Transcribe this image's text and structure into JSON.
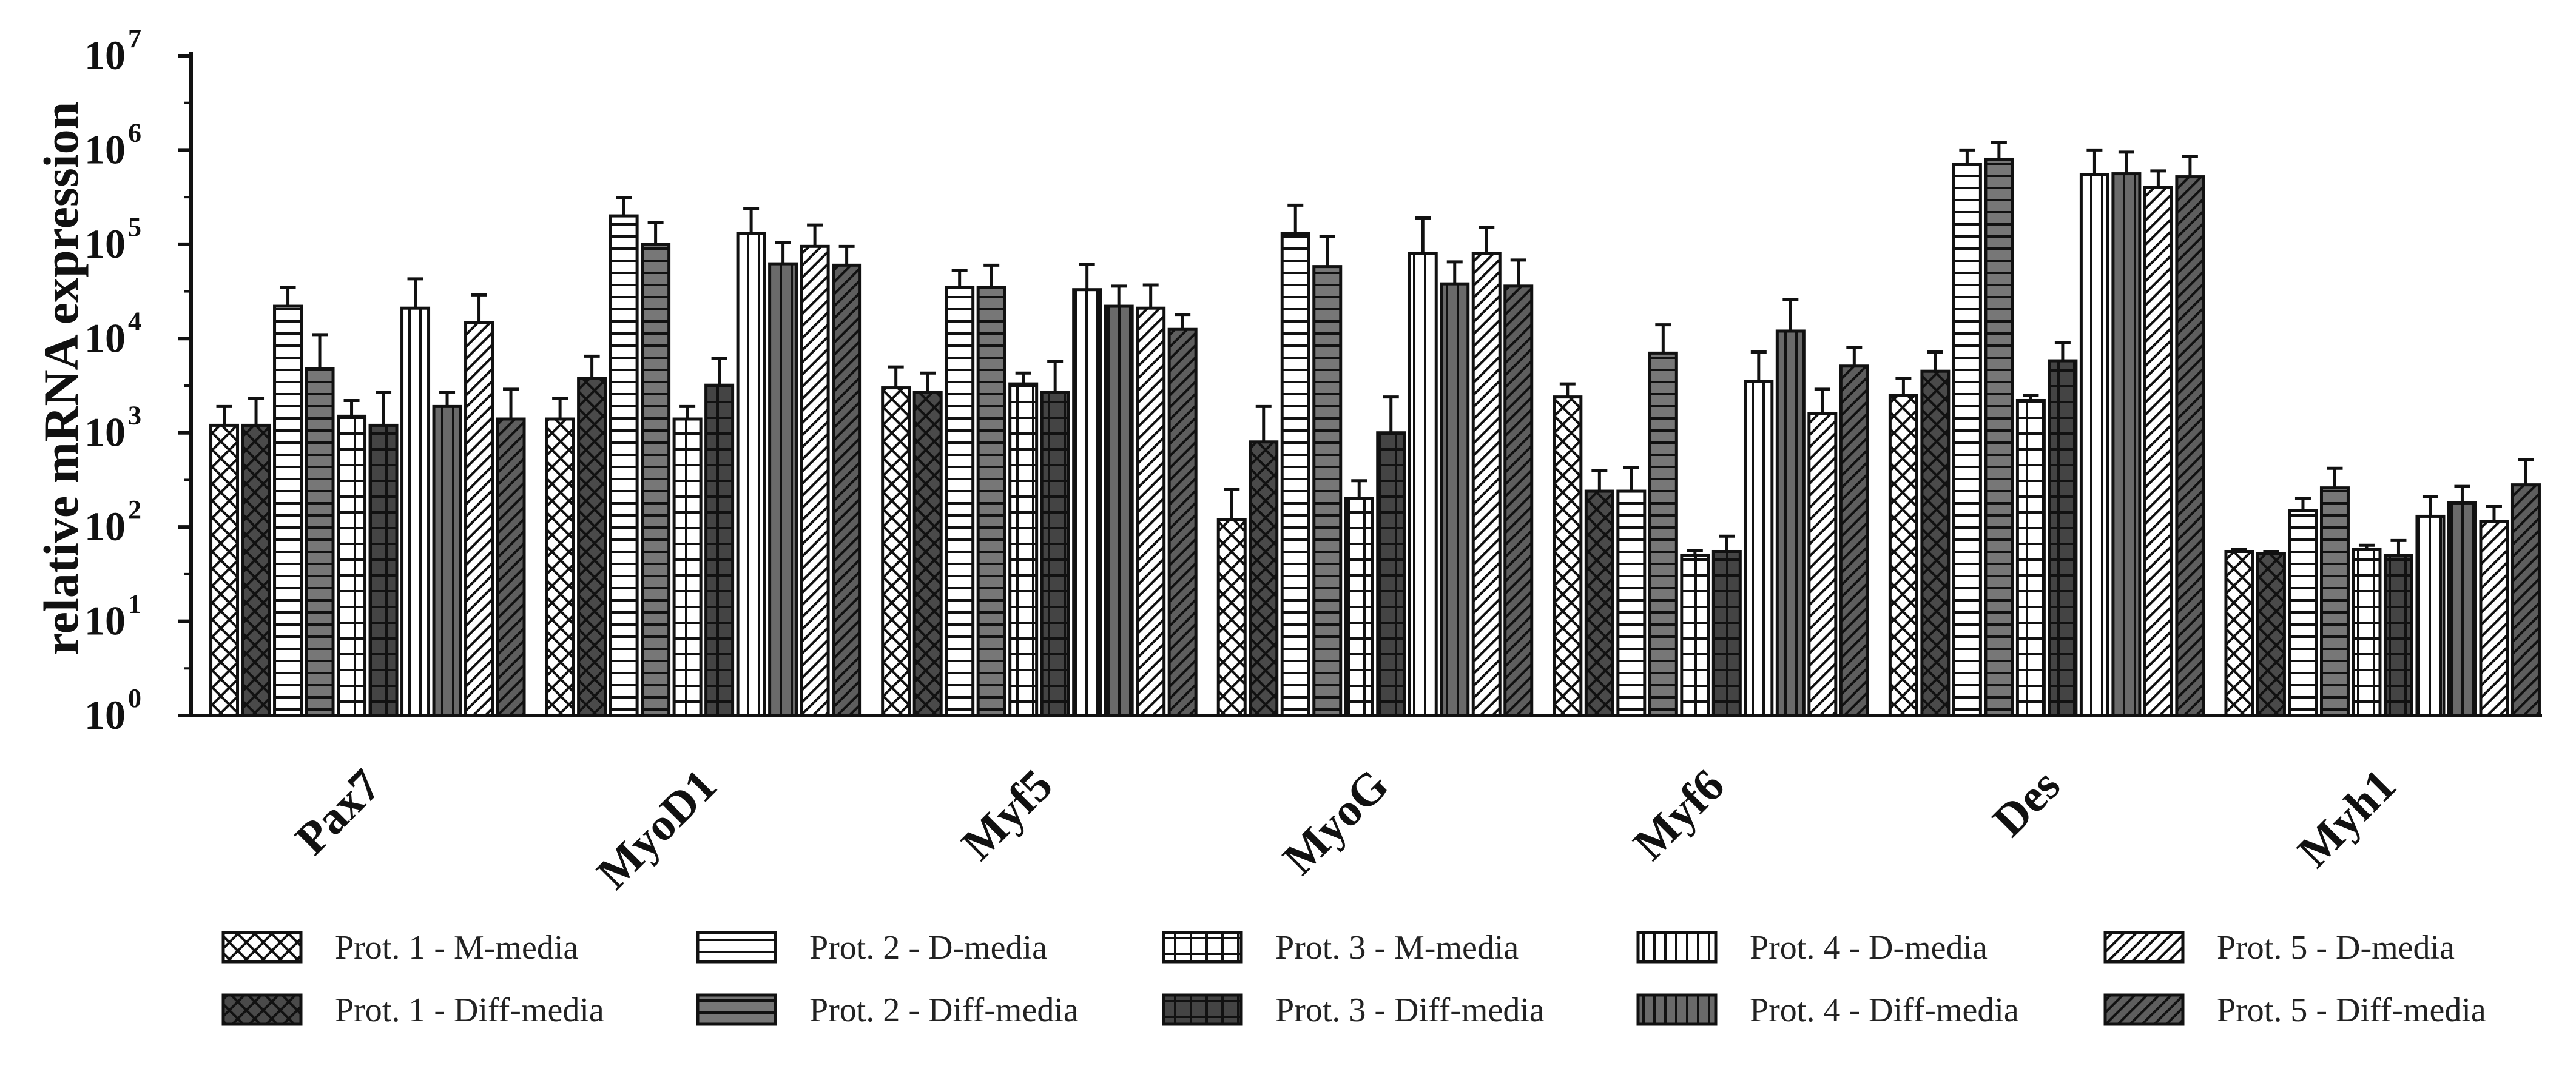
{
  "chart_data": {
    "type": "bar",
    "title": "",
    "xlabel": "",
    "ylabel": "relative mRNA expression",
    "yscale": "log10",
    "ylim": [
      1,
      10000000
    ],
    "yticks": [
      {
        "value": 1,
        "base": "10",
        "exp": "0"
      },
      {
        "value": 10,
        "base": "10",
        "exp": "1"
      },
      {
        "value": 100,
        "base": "10",
        "exp": "2"
      },
      {
        "value": 1000,
        "base": "10",
        "exp": "3"
      },
      {
        "value": 10000,
        "base": "10",
        "exp": "4"
      },
      {
        "value": 100000,
        "base": "10",
        "exp": "5"
      },
      {
        "value": 1000000,
        "base": "10",
        "exp": "6"
      },
      {
        "value": 10000000,
        "base": "10",
        "exp": "7"
      }
    ],
    "categories": [
      "Pax7",
      "MyoD1",
      "Myf5",
      "MyoG",
      "Myf6",
      "Des",
      "Myh1"
    ],
    "legend_position": "bottom",
    "series": [
      {
        "name": "Prot. 1 - M-media",
        "pattern": "crosshatch",
        "fill": "#ffffff",
        "values": [
          1200,
          1400,
          3000,
          120,
          2400,
          2500,
          55
        ],
        "errors": [
          1900,
          2300,
          5000,
          250,
          3300,
          3800,
          58
        ]
      },
      {
        "name": "Prot. 1 - Diff-media",
        "pattern": "crosshatch",
        "fill": "#4a4a4a",
        "values": [
          1200,
          3800,
          2700,
          800,
          240,
          4500,
          52
        ],
        "errors": [
          2300,
          6500,
          4300,
          1900,
          400,
          7200,
          55
        ]
      },
      {
        "name": "Prot. 2 - D-media",
        "pattern": "horizontal",
        "fill": "#ffffff",
        "values": [
          22000,
          200000,
          35000,
          130000,
          240,
          700000,
          150
        ],
        "errors": [
          35000,
          310000,
          53000,
          260000,
          430,
          1000000,
          200
        ]
      },
      {
        "name": "Prot. 2 - Diff-media",
        "pattern": "horizontal",
        "fill": "#777777",
        "values": [
          4800,
          100000,
          35000,
          58000,
          7000,
          800000,
          260
        ],
        "errors": [
          11000,
          170000,
          60000,
          120000,
          14000,
          1200000,
          420
        ]
      },
      {
        "name": "Prot. 3 - M-media",
        "pattern": "grid",
        "fill": "#ffffff",
        "values": [
          1500,
          1400,
          3300,
          200,
          50,
          2200,
          58
        ],
        "errors": [
          2200,
          1900,
          4300,
          310,
          56,
          2500,
          64
        ]
      },
      {
        "name": "Prot. 3 - Diff-media",
        "pattern": "grid",
        "fill": "#444444",
        "values": [
          1200,
          3200,
          2700,
          1000,
          55,
          5800,
          50
        ],
        "errors": [
          2700,
          6200,
          5700,
          2400,
          80,
          9000,
          72
        ]
      },
      {
        "name": "Prot. 4 - D-media",
        "pattern": "vertical",
        "fill": "#ffffff",
        "values": [
          21000,
          130000,
          33000,
          80000,
          3500,
          550000,
          130
        ],
        "errors": [
          43000,
          240000,
          61000,
          190000,
          7200,
          1000000,
          210
        ]
      },
      {
        "name": "Prot. 4 - Diff-media",
        "pattern": "vertical",
        "fill": "#6a6a6a",
        "values": [
          1900,
          62000,
          22000,
          38000,
          12000,
          560000,
          180
        ],
        "errors": [
          2700,
          105000,
          36000,
          65000,
          26000,
          950000,
          270
        ]
      },
      {
        "name": "Prot. 5 - D-media",
        "pattern": "diagonal",
        "fill": "#ffffff",
        "values": [
          14800,
          95000,
          21000,
          80000,
          1600,
          400000,
          115
        ],
        "errors": [
          29000,
          160000,
          37000,
          150000,
          2900,
          600000,
          165
        ]
      },
      {
        "name": "Prot. 5 - Diff-media",
        "pattern": "diagonal",
        "fill": "#5e5e5e",
        "values": [
          1400,
          60000,
          12500,
          36000,
          5100,
          520000,
          280
        ],
        "errors": [
          2900,
          95000,
          18000,
          68000,
          8000,
          850000,
          520
        ]
      }
    ]
  }
}
